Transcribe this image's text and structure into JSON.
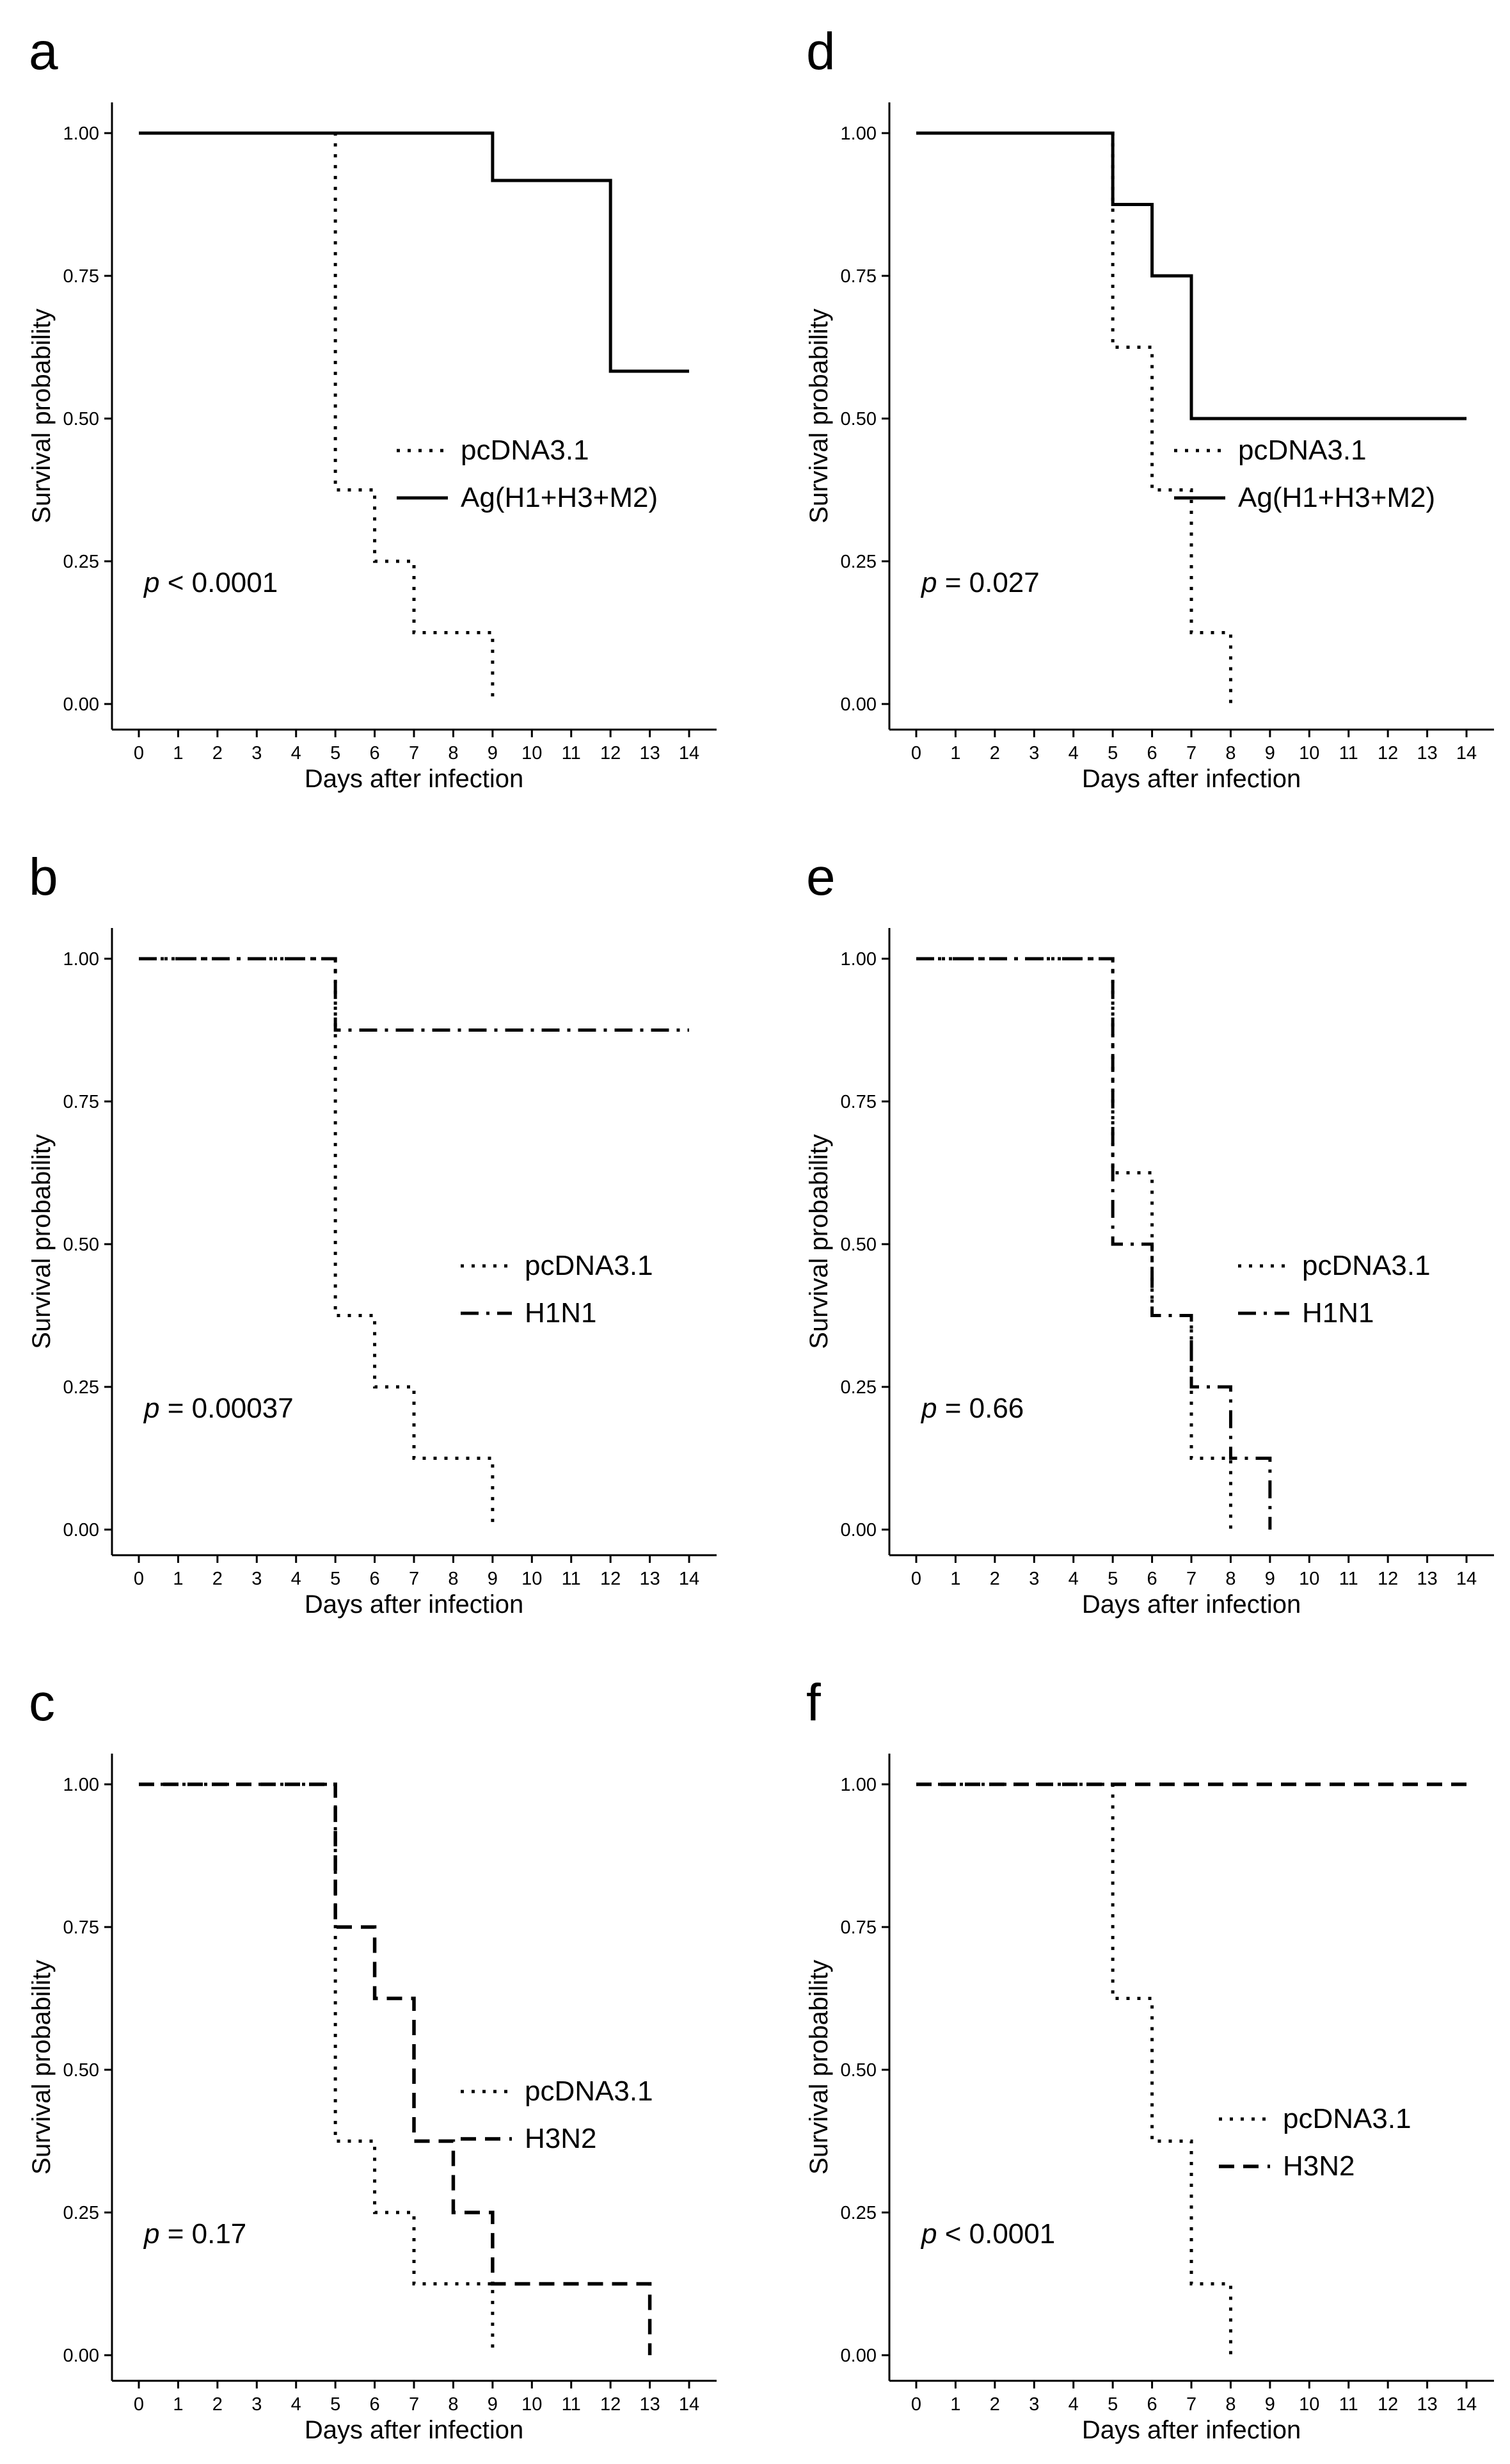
{
  "figure": {
    "x_ticks": [
      "0",
      "1",
      "2",
      "3",
      "4",
      "5",
      "6",
      "7",
      "8",
      "9",
      "10",
      "11",
      "12",
      "13",
      "14"
    ],
    "y_ticks": [
      "0.00",
      "0.25",
      "0.50",
      "0.75",
      "1.00"
    ]
  },
  "chart_data": [
    {
      "panel": "a",
      "type": "line",
      "step": true,
      "xlabel": "Days after infection",
      "ylabel": "Survival probability",
      "xlim": [
        0,
        14
      ],
      "ylim": [
        0,
        1
      ],
      "p_value": {
        "symbol": "p",
        "text": " < 0.0001"
      },
      "series": [
        {
          "name": "pcDNA3.1",
          "style": "dotted",
          "x": [
            0,
            5,
            6,
            7,
            9
          ],
          "y": [
            1.0,
            0.375,
            0.25,
            0.125,
            0.0
          ],
          "end": 9,
          "drop_to_zero": true
        },
        {
          "name": "Ag(H1+H3+M2)",
          "style": "solid",
          "x": [
            0,
            9,
            12
          ],
          "y": [
            1.0,
            0.917,
            0.583
          ],
          "end": 14,
          "drop_to_zero": false
        }
      ]
    },
    {
      "panel": "b",
      "type": "line",
      "step": true,
      "xlabel": "Days after infection",
      "ylabel": "Survival probability",
      "xlim": [
        0,
        14
      ],
      "ylim": [
        0,
        1
      ],
      "p_value": {
        "symbol": "p",
        "text": " = 0.00037"
      },
      "series": [
        {
          "name": "pcDNA3.1",
          "style": "dotted",
          "x": [
            0,
            5,
            6,
            7,
            9
          ],
          "y": [
            1.0,
            0.375,
            0.25,
            0.125,
            0.0
          ],
          "end": 9,
          "drop_to_zero": true
        },
        {
          "name": "H1N1",
          "style": "dashdot",
          "x": [
            0,
            5
          ],
          "y": [
            1.0,
            0.875
          ],
          "end": 14,
          "drop_to_zero": false
        }
      ]
    },
    {
      "panel": "c",
      "type": "line",
      "step": true,
      "xlabel": "Days after infection",
      "ylabel": "Survival probability",
      "xlim": [
        0,
        14
      ],
      "ylim": [
        0,
        1
      ],
      "p_value": {
        "symbol": "p",
        "text": " = 0.17"
      },
      "series": [
        {
          "name": "pcDNA3.1",
          "style": "dotted",
          "x": [
            0,
            5,
            6,
            7,
            9
          ],
          "y": [
            1.0,
            0.375,
            0.25,
            0.125,
            0.0
          ],
          "end": 9,
          "drop_to_zero": true
        },
        {
          "name": "H3N2",
          "style": "dashed",
          "x": [
            0,
            5,
            6,
            7,
            8,
            9,
            13
          ],
          "y": [
            1.0,
            0.75,
            0.625,
            0.375,
            0.25,
            0.125,
            0.0
          ],
          "end": 13,
          "drop_to_zero": true
        }
      ]
    },
    {
      "panel": "d",
      "type": "line",
      "step": true,
      "xlabel": "Days after infection",
      "ylabel": "Survival probability",
      "xlim": [
        0,
        14
      ],
      "ylim": [
        0,
        1
      ],
      "p_value": {
        "symbol": "p",
        "text": " = 0.027"
      },
      "series": [
        {
          "name": "pcDNA3.1",
          "style": "dotted",
          "x": [
            0,
            5,
            6,
            7,
            8
          ],
          "y": [
            1.0,
            0.625,
            0.375,
            0.125,
            0.0
          ],
          "end": 8,
          "drop_to_zero": true
        },
        {
          "name": "Ag(H1+H3+M2)",
          "style": "solid",
          "x": [
            0,
            5,
            6,
            7
          ],
          "y": [
            1.0,
            0.875,
            0.75,
            0.5
          ],
          "end": 14,
          "drop_to_zero": false
        }
      ]
    },
    {
      "panel": "e",
      "type": "line",
      "step": true,
      "xlabel": "Days after infection",
      "ylabel": "Survival probability",
      "xlim": [
        0,
        14
      ],
      "ylim": [
        0,
        1
      ],
      "p_value": {
        "symbol": "p",
        "text": " = 0.66"
      },
      "series": [
        {
          "name": "pcDNA3.1",
          "style": "dotted",
          "x": [
            0,
            5,
            6,
            7,
            8
          ],
          "y": [
            1.0,
            0.625,
            0.375,
            0.125,
            0.0
          ],
          "end": 8,
          "drop_to_zero": true
        },
        {
          "name": "H1N1",
          "style": "dashdot",
          "x": [
            0,
            5,
            6,
            7,
            8,
            9
          ],
          "y": [
            1.0,
            0.5,
            0.375,
            0.25,
            0.125,
            0.0
          ],
          "end": 9,
          "drop_to_zero": true
        }
      ]
    },
    {
      "panel": "f",
      "type": "line",
      "step": true,
      "xlabel": "Days after infection",
      "ylabel": "Survival probability",
      "xlim": [
        0,
        14
      ],
      "ylim": [
        0,
        1
      ],
      "p_value": {
        "symbol": "p",
        "text": " < 0.0001"
      },
      "series": [
        {
          "name": "pcDNA3.1",
          "style": "dotted",
          "x": [
            0,
            5,
            6,
            7,
            8
          ],
          "y": [
            1.0,
            0.625,
            0.375,
            0.125,
            0.0
          ],
          "end": 8,
          "drop_to_zero": true
        },
        {
          "name": "H3N2",
          "style": "dashed",
          "x": [
            0
          ],
          "y": [
            1.0
          ],
          "end": 14,
          "drop_to_zero": false
        }
      ]
    }
  ]
}
